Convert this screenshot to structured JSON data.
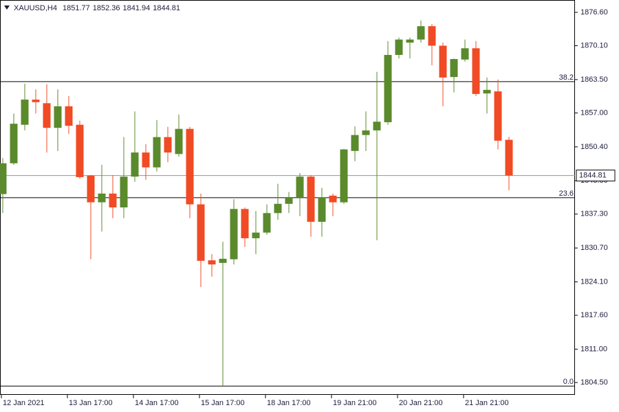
{
  "chart_data": {
    "type": "candlestick",
    "symbol": "XAUUSD,H4",
    "ohlc_header": [
      1851.77,
      1852.36,
      1841.94,
      1844.81
    ],
    "categories": [
      "12 Jan 2021",
      null,
      null,
      null,
      null,
      null,
      "13 Jan 17:00",
      null,
      null,
      null,
      null,
      null,
      "14 Jan 17:00",
      null,
      null,
      null,
      null,
      null,
      "15 Jan 17:00",
      null,
      null,
      null,
      null,
      null,
      "18 Jan 17:00",
      null,
      null,
      null,
      null,
      null,
      "19 Jan 21:00",
      null,
      null,
      null,
      null,
      null,
      "20 Jan 21:00",
      null,
      null,
      null,
      null,
      null,
      "21 Jan 21:00",
      null,
      null,
      null,
      null
    ],
    "open": [
      1841.2,
      1847.2,
      1854.7,
      1859.6,
      1858.9,
      1854.1,
      1858.3,
      1854.7,
      1844.8,
      1839.6,
      1841.3,
      1838.6,
      1844.6,
      1849.3,
      1846.4,
      1852.3,
      1849.0,
      1853.9,
      1839.2,
      1828.3,
      1827.8,
      1828.5,
      1838.3,
      1832.6,
      1833.7,
      1837.5,
      1839.3,
      1840.5,
      1844.6,
      1835.8,
      1840.9,
      1839.6,
      1849.6,
      1852.7,
      1853.6,
      1855.2,
      1868.3,
      1870.7,
      1871.3,
      1873.9,
      1870.1,
      1864.0,
      1867.4,
      1869.6,
      1860.8,
      1861.2,
      1851.77
    ],
    "high": [
      1848.2,
      1856.9,
      1862.7,
      1861.6,
      1862.6,
      1861.6,
      1860.3,
      1855.5,
      1844.9,
      1846.9,
      1844.9,
      1852.3,
      1857.3,
      1850.9,
      1855.6,
      1854.3,
      1856.7,
      1854.3,
      1841.3,
      1829.5,
      1831.9,
      1840.2,
      1838.6,
      1837.9,
      1839.2,
      1843.2,
      1841.6,
      1845.3,
      1844.9,
      1842.4,
      1841.3,
      1850.0,
      1854.4,
      1857.3,
      1865.0,
      1871.0,
      1871.7,
      1871.7,
      1875.0,
      1874.3,
      1870.7,
      1867.6,
      1871.3,
      1871.0,
      1863.9,
      1863.5,
      1852.36
    ],
    "low": [
      1837.5,
      1846.9,
      1853.6,
      1856.9,
      1849.3,
      1849.6,
      1852.9,
      1844.2,
      1828.5,
      1833.9,
      1836.5,
      1836.5,
      1843.6,
      1844.0,
      1845.6,
      1847.4,
      1848.5,
      1836.5,
      1823.1,
      1825.1,
      1803.8,
      1827.5,
      1830.9,
      1829.5,
      1833.3,
      1836.2,
      1837.5,
      1836.9,
      1832.9,
      1832.9,
      1836.9,
      1839.3,
      1847.6,
      1849.6,
      1832.2,
      1854.7,
      1867.6,
      1867.6,
      1870.7,
      1866.3,
      1858.3,
      1861.0,
      1867.0,
      1860.3,
      1856.9,
      1849.9,
      1841.94
    ],
    "close": [
      1847.2,
      1854.9,
      1859.6,
      1859.1,
      1854.1,
      1858.3,
      1854.5,
      1844.5,
      1839.6,
      1841.3,
      1838.6,
      1844.6,
      1849.3,
      1846.4,
      1852.3,
      1849.3,
      1853.9,
      1839.2,
      1828.2,
      1827.5,
      1828.6,
      1838.3,
      1832.6,
      1833.7,
      1837.5,
      1839.3,
      1840.5,
      1844.6,
      1835.8,
      1840.6,
      1839.6,
      1849.9,
      1852.7,
      1853.6,
      1855.3,
      1868.3,
      1871.3,
      1871.3,
      1873.9,
      1870.1,
      1863.9,
      1867.5,
      1869.6,
      1860.7,
      1861.5,
      1851.6,
      1844.81
    ],
    "up_color": "#5a8a2c",
    "down_color": "#f04b25",
    "ylim": [
      1802.1,
      1879.0
    ],
    "yticks": [
      {
        "value": 1876.6,
        "label": "1876.60"
      },
      {
        "value": 1870.1,
        "label": "1870.10"
      },
      {
        "value": 1863.5,
        "label": "1863.50"
      },
      {
        "value": 1857.0,
        "label": "1857.00"
      },
      {
        "value": 1850.4,
        "label": "1850.40"
      },
      {
        "value": 1843.8,
        "label": "1843.80"
      },
      {
        "value": 1837.3,
        "label": "1837.30"
      },
      {
        "value": 1830.7,
        "label": "1830.70"
      },
      {
        "value": 1824.1,
        "label": "1824.10"
      },
      {
        "value": 1817.6,
        "label": "1817.60"
      },
      {
        "value": 1811.0,
        "label": "1811.00"
      },
      {
        "value": 1804.5,
        "label": "1804.50"
      }
    ],
    "levels": [
      {
        "label": "38.2",
        "value": 1863.1
      },
      {
        "label": "23.6",
        "value": 1840.5
      },
      {
        "label": "0.0",
        "value": 1803.8
      }
    ],
    "last_price": 1844.81
  }
}
